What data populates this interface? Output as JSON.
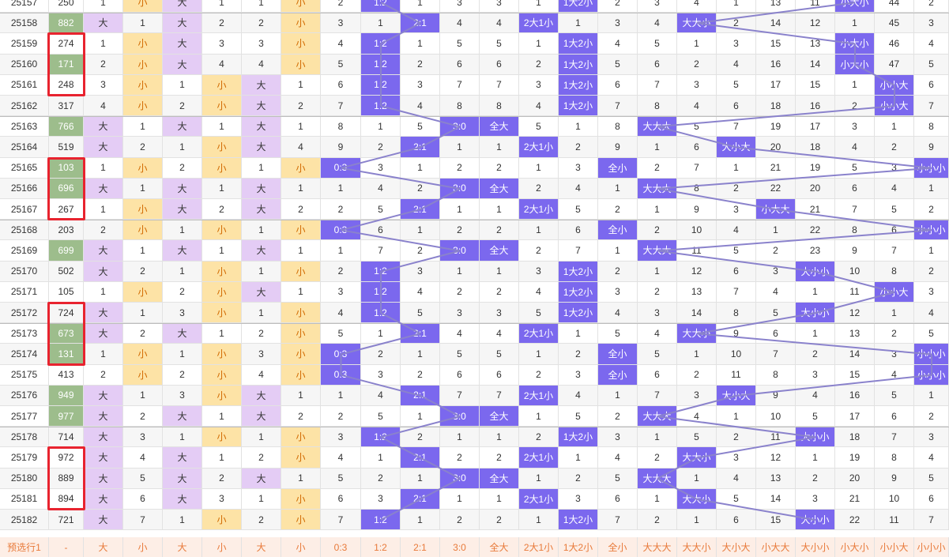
{
  "rows": [
    [
      "25157",
      "250",
      "1",
      "小",
      "大",
      "1",
      "1",
      "小",
      "2",
      "1:2",
      "1",
      "3",
      "3",
      "1",
      "1大2小",
      "2",
      "3",
      "4",
      "1",
      "13",
      "11",
      "小大小",
      "44",
      "2"
    ],
    [
      "25158",
      "882",
      "大",
      "1",
      "大",
      "2",
      "2",
      "小",
      "3",
      "1",
      "2:1",
      "4",
      "4",
      "2大1小",
      "1",
      "3",
      "4",
      "大大小",
      "2",
      "14",
      "12",
      "1",
      "45",
      "3"
    ],
    [
      "25159",
      "274",
      "1",
      "小",
      "大",
      "3",
      "3",
      "小",
      "4",
      "1:2",
      "1",
      "5",
      "5",
      "1",
      "1大2小",
      "4",
      "5",
      "1",
      "3",
      "15",
      "13",
      "小大小",
      "46",
      "4"
    ],
    [
      "25160",
      "171",
      "2",
      "小",
      "大",
      "4",
      "4",
      "小",
      "5",
      "1:2",
      "2",
      "6",
      "6",
      "2",
      "1大2小",
      "5",
      "6",
      "2",
      "4",
      "16",
      "14",
      "小大小",
      "47",
      "5"
    ],
    [
      "25161",
      "248",
      "3",
      "小",
      "1",
      "小",
      "大",
      "1",
      "6",
      "1:2",
      "3",
      "7",
      "7",
      "3",
      "1大2小",
      "6",
      "7",
      "3",
      "5",
      "17",
      "15",
      "1",
      "小小大",
      "6"
    ],
    [
      "25162",
      "317",
      "4",
      "小",
      "2",
      "小",
      "大",
      "2",
      "7",
      "1:2",
      "4",
      "8",
      "8",
      "4",
      "1大2小",
      "7",
      "8",
      "4",
      "6",
      "18",
      "16",
      "2",
      "小小大",
      "7"
    ],
    [
      "25163",
      "766",
      "大",
      "1",
      "大",
      "1",
      "大",
      "1",
      "8",
      "1",
      "5",
      "3:0",
      "全大",
      "5",
      "1",
      "8",
      "大大大",
      "5",
      "7",
      "19",
      "17",
      "3",
      "1",
      "8"
    ],
    [
      "25164",
      "519",
      "大",
      "2",
      "1",
      "小",
      "大",
      "4",
      "9",
      "2",
      "2:1",
      "1",
      "1",
      "2大1小",
      "2",
      "9",
      "1",
      "6",
      "大小大",
      "20",
      "18",
      "4",
      "2",
      "9"
    ],
    [
      "25165",
      "103",
      "1",
      "小",
      "2",
      "小",
      "1",
      "小",
      "0:3",
      "3",
      "1",
      "2",
      "2",
      "1",
      "3",
      "全小",
      "2",
      "7",
      "1",
      "21",
      "19",
      "5",
      "3",
      "小小小"
    ],
    [
      "25166",
      "696",
      "大",
      "1",
      "大",
      "1",
      "大",
      "1",
      "1",
      "4",
      "2",
      "3:0",
      "全大",
      "2",
      "4",
      "1",
      "大大大",
      "8",
      "2",
      "22",
      "20",
      "6",
      "4",
      "1"
    ],
    [
      "25167",
      "267",
      "1",
      "小",
      "大",
      "2",
      "大",
      "2",
      "2",
      "5",
      "2:1",
      "1",
      "1",
      "2大1小",
      "5",
      "2",
      "1",
      "9",
      "3",
      "小大大",
      "21",
      "7",
      "5",
      "2"
    ],
    [
      "25168",
      "203",
      "2",
      "小",
      "1",
      "小",
      "1",
      "小",
      "0:3",
      "6",
      "1",
      "2",
      "2",
      "1",
      "6",
      "全小",
      "2",
      "10",
      "4",
      "1",
      "22",
      "8",
      "6",
      "小小小"
    ],
    [
      "25169",
      "699",
      "大",
      "1",
      "大",
      "1",
      "大",
      "1",
      "1",
      "7",
      "2",
      "3:0",
      "全大",
      "2",
      "7",
      "1",
      "大大大",
      "11",
      "5",
      "2",
      "23",
      "9",
      "7",
      "1"
    ],
    [
      "25170",
      "502",
      "大",
      "2",
      "1",
      "小",
      "1",
      "小",
      "2",
      "1:2",
      "3",
      "1",
      "1",
      "3",
      "1大2小",
      "2",
      "1",
      "12",
      "6",
      "3",
      "大小小",
      "10",
      "8",
      "2"
    ],
    [
      "25171",
      "105",
      "1",
      "小",
      "2",
      "小",
      "大",
      "1",
      "3",
      "1:2",
      "4",
      "2",
      "2",
      "4",
      "1大2小",
      "3",
      "2",
      "13",
      "7",
      "4",
      "1",
      "11",
      "小小大",
      "3"
    ],
    [
      "25172",
      "724",
      "大",
      "1",
      "3",
      "小",
      "1",
      "小",
      "4",
      "1:2",
      "5",
      "3",
      "3",
      "5",
      "1大2小",
      "4",
      "3",
      "14",
      "8",
      "5",
      "大小小",
      "12",
      "1",
      "4"
    ],
    [
      "25173",
      "673",
      "大",
      "2",
      "大",
      "1",
      "2",
      "小",
      "5",
      "1",
      "2:1",
      "4",
      "4",
      "2大1小",
      "1",
      "5",
      "4",
      "大大小",
      "9",
      "6",
      "1",
      "13",
      "2",
      "5"
    ],
    [
      "25174",
      "131",
      "1",
      "小",
      "1",
      "小",
      "3",
      "小",
      "0:3",
      "2",
      "1",
      "5",
      "5",
      "1",
      "2",
      "全小",
      "5",
      "1",
      "10",
      "7",
      "2",
      "14",
      "3",
      "小小小"
    ],
    [
      "25175",
      "413",
      "2",
      "小",
      "2",
      "小",
      "4",
      "小",
      "0:3",
      "3",
      "2",
      "6",
      "6",
      "2",
      "3",
      "全小",
      "6",
      "2",
      "11",
      "8",
      "3",
      "15",
      "4",
      "小小小"
    ],
    [
      "25176",
      "949",
      "大",
      "1",
      "3",
      "小",
      "大",
      "1",
      "1",
      "4",
      "2:1",
      "7",
      "7",
      "2大1小",
      "4",
      "1",
      "7",
      "3",
      "大小大",
      "9",
      "4",
      "16",
      "5",
      "1"
    ],
    [
      "25177",
      "977",
      "大",
      "2",
      "大",
      "1",
      "大",
      "2",
      "2",
      "5",
      "1",
      "3:0",
      "全大",
      "1",
      "5",
      "2",
      "大大大",
      "4",
      "1",
      "10",
      "5",
      "17",
      "6",
      "2"
    ],
    [
      "25178",
      "714",
      "大",
      "3",
      "1",
      "小",
      "1",
      "小",
      "3",
      "1:2",
      "2",
      "1",
      "1",
      "2",
      "1大2小",
      "3",
      "1",
      "5",
      "2",
      "11",
      "大小小",
      "18",
      "7",
      "3"
    ],
    [
      "25179",
      "972",
      "大",
      "4",
      "大",
      "1",
      "2",
      "小",
      "4",
      "1",
      "2:1",
      "2",
      "2",
      "2大1小",
      "1",
      "4",
      "2",
      "大大小",
      "3",
      "12",
      "1",
      "19",
      "8",
      "4"
    ],
    [
      "25180",
      "889",
      "大",
      "5",
      "大",
      "2",
      "大",
      "1",
      "5",
      "2",
      "1",
      "3:0",
      "全大",
      "1",
      "2",
      "5",
      "大大大",
      "1",
      "4",
      "13",
      "2",
      "20",
      "9",
      "5"
    ],
    [
      "25181",
      "894",
      "大",
      "6",
      "大",
      "3",
      "1",
      "小",
      "6",
      "3",
      "2:1",
      "1",
      "1",
      "2大1小",
      "3",
      "6",
      "1",
      "大大小",
      "5",
      "14",
      "3",
      "21",
      "10",
      "6"
    ],
    [
      "25182",
      "721",
      "大",
      "7",
      "1",
      "小",
      "2",
      "小",
      "7",
      "1:2",
      "1",
      "2",
      "2",
      "1",
      "1大2小",
      "7",
      "2",
      "1",
      "6",
      "15",
      "大小小",
      "22",
      "11",
      "7"
    ]
  ],
  "footer": [
    "预选行1",
    "-",
    "大",
    "小",
    "大",
    "小",
    "大",
    "小",
    "0:3",
    "1:2",
    "2:1",
    "3:0",
    "全大",
    "2大1小",
    "1大2小",
    "全小",
    "大大大",
    "大大小",
    "大小大",
    "小大大",
    "大小小",
    "小大小",
    "小小大",
    "小小小"
  ],
  "colors": {
    "green": "#9dbd8c",
    "purple": "#e4ccf5",
    "yellow": "#fde3a6",
    "blue": "#7b68ee",
    "line": "#8a82cc",
    "red": "#e8232f",
    "footer_bg": "#fdeee6",
    "footer_text": "#e87a3a"
  }
}
